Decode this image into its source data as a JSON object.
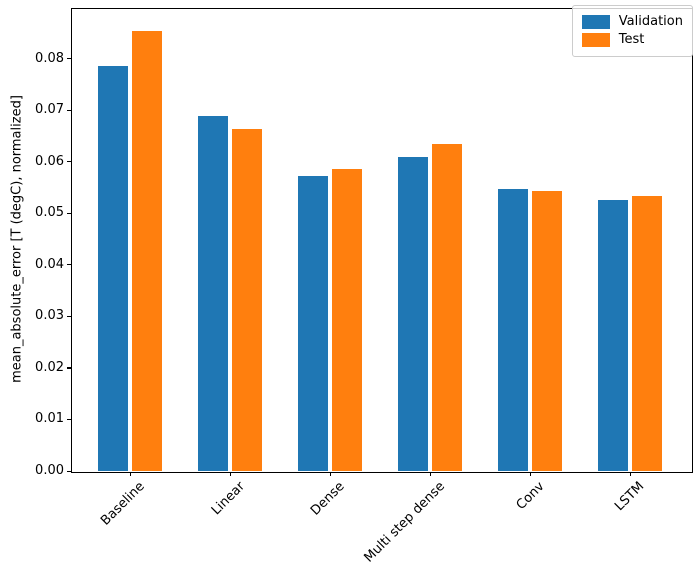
{
  "chart_data": {
    "type": "bar",
    "title": "",
    "xlabel": "",
    "ylabel": "mean_absolute_error [T (degC), normalized]",
    "categories": [
      "Baseline",
      "Linear",
      "Dense",
      "Multi step dense",
      "Conv",
      "LSTM"
    ],
    "series": [
      {
        "name": "Validation",
        "color": "#1f77b4",
        "values": [
          0.0785,
          0.0688,
          0.0573,
          0.0609,
          0.0546,
          0.0525
        ]
      },
      {
        "name": "Test",
        "color": "#ff7f0e",
        "values": [
          0.0853,
          0.0664,
          0.0585,
          0.0635,
          0.0544,
          0.0534
        ]
      }
    ],
    "ylim": [
      0,
      0.0898
    ],
    "yticks": [
      0,
      0.01,
      0.02,
      0.03,
      0.04,
      0.05,
      0.06,
      0.07,
      0.08
    ],
    "ytick_labels": [
      "0.00",
      "0.01",
      "0.02",
      "0.03",
      "0.04",
      "0.05",
      "0.06",
      "0.07",
      "0.08"
    ],
    "xtick_rotation": 45,
    "grid": false,
    "legend": {
      "position": "upper right",
      "entries": [
        "Validation",
        "Test"
      ]
    },
    "colors": {
      "validation": "#1f77b4",
      "test": "#ff7f0e",
      "spine": "#000000",
      "legend_border": "#cccccc",
      "background": "#ffffff"
    }
  }
}
